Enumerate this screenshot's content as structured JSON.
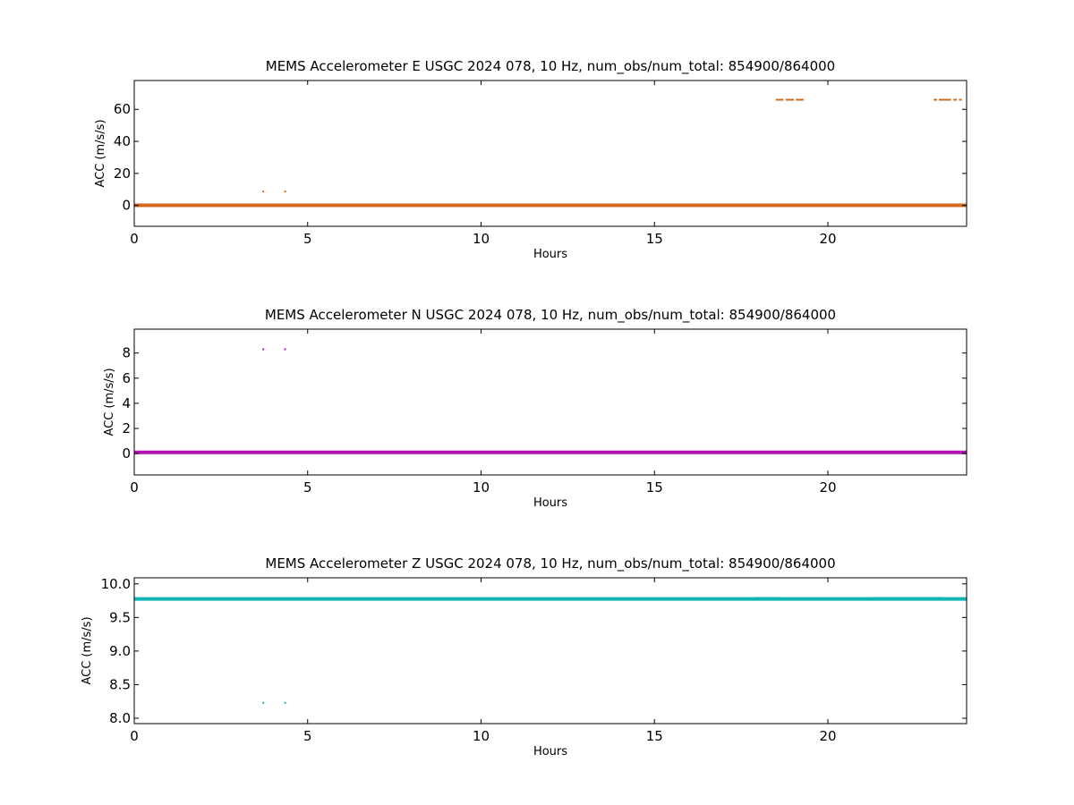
{
  "chart_data": [
    {
      "type": "scatter",
      "title": "MEMS Accelerometer E USGC 2024 078, 10 Hz, num_obs/num_total: 854900/864000",
      "xlabel": "Hours",
      "ylabel": "ACC (m/s/s)",
      "xlim": [
        0,
        24
      ],
      "ylim": [
        -13,
        78
      ],
      "xticks": [
        0,
        5,
        10,
        15,
        20
      ],
      "yticks": [
        0,
        20,
        40,
        60
      ],
      "xtick_labels": [
        "0",
        "5",
        "10",
        "15",
        "20"
      ],
      "ytick_labels": [
        "0",
        "20",
        "40",
        "60"
      ],
      "grid": false,
      "color": "#d2691e",
      "series": [
        {
          "baseline": {
            "x": [
              0,
              24
            ],
            "y": 0.1
          },
          "outlier_points": [
            {
              "x": 3.72,
              "y": 8.7
            },
            {
              "x": 4.35,
              "y": 8.7
            }
          ],
          "spike_segments": [
            {
              "x": [
                18.5,
                18.72
              ],
              "y": 66
            },
            {
              "x": [
                18.78,
                19.02
              ],
              "y": 66
            },
            {
              "x": [
                19.08,
                19.3
              ],
              "y": 66
            },
            {
              "x": [
                23.05,
                23.15
              ],
              "y": 66
            },
            {
              "x": [
                23.2,
                23.55
              ],
              "y": 66
            },
            {
              "x": [
                23.62,
                23.72
              ],
              "y": 66
            },
            {
              "x": [
                23.78,
                23.86
              ],
              "y": 66
            }
          ]
        }
      ]
    },
    {
      "type": "scatter",
      "title": "MEMS Accelerometer N USGC 2024 078, 10 Hz, num_obs/num_total: 854900/864000",
      "xlabel": "Hours",
      "ylabel": "ACC (m/s/s)",
      "xlim": [
        0,
        24
      ],
      "ylim": [
        -1.7,
        9.9
      ],
      "xticks": [
        0,
        5,
        10,
        15,
        20
      ],
      "yticks": [
        0,
        2,
        4,
        6,
        8
      ],
      "xtick_labels": [
        "0",
        "5",
        "10",
        "15",
        "20"
      ],
      "ytick_labels": [
        "0",
        "2",
        "4",
        "6",
        "8"
      ],
      "grid": false,
      "color": "#b40fb4",
      "series": [
        {
          "baseline": {
            "x": [
              0,
              24
            ],
            "y": 0.1
          },
          "outlier_points": [
            {
              "x": 3.72,
              "y": 8.3
            },
            {
              "x": 4.35,
              "y": 8.3
            }
          ],
          "spike_segments": []
        }
      ]
    },
    {
      "type": "scatter",
      "title": "MEMS Accelerometer Z USGC 2024 078, 10 Hz, num_obs/num_total: 854900/864000",
      "xlabel": "Hours",
      "ylabel": "ACC (m/s/s)",
      "xlim": [
        0,
        24
      ],
      "ylim": [
        7.92,
        10.09
      ],
      "xticks": [
        0,
        5,
        10,
        15,
        20
      ],
      "yticks": [
        8.0,
        8.5,
        9.0,
        9.5,
        10.0
      ],
      "xtick_labels": [
        "0",
        "5",
        "10",
        "15",
        "20"
      ],
      "ytick_labels": [
        "8.0",
        "8.5",
        "9.0",
        "9.5",
        "10.0"
      ],
      "grid": false,
      "color": "#0fb4b4",
      "series": [
        {
          "baseline": {
            "x": [
              0,
              24
            ],
            "y": 9.775
          },
          "outlier_points": [
            {
              "x": 3.72,
              "y": 8.23
            },
            {
              "x": 4.35,
              "y": 8.23
            }
          ],
          "spike_segments": [
            {
              "x": [
                17.9,
                18.6
              ],
              "y": 9.79
            },
            {
              "x": [
                21.3,
                23.3
              ],
              "y": 9.79
            }
          ]
        }
      ]
    }
  ]
}
